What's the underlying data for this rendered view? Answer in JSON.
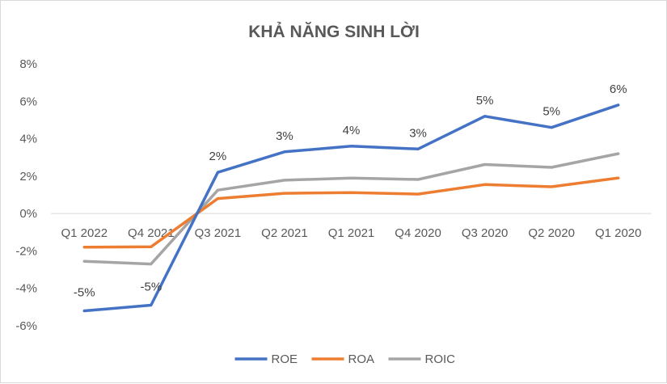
{
  "chart_data": {
    "type": "line",
    "title": "KHẢ NĂNG SINH LỜI",
    "categories": [
      "Q1 2022",
      "Q4 2021",
      "Q3 2021",
      "Q2 2021",
      "Q1 2021",
      "Q4 2020",
      "Q3 2020",
      "Q2 2020",
      "Q1 2020"
    ],
    "ylim": [
      -0.06,
      0.08
    ],
    "yticks": [
      -0.06,
      -0.04,
      -0.02,
      0,
      0.02,
      0.04,
      0.06,
      0.08
    ],
    "ytick_labels": [
      "-6%",
      "-4%",
      "-2%",
      "0%",
      "2%",
      "4%",
      "6%",
      "8%"
    ],
    "grid": false,
    "legend": "bottom",
    "series": [
      {
        "name": "ROE",
        "color": "#4472c4",
        "values": [
          -0.052,
          -0.049,
          0.022,
          0.033,
          0.036,
          0.0345,
          0.052,
          0.046,
          0.058
        ],
        "data_labels": [
          "-5%",
          "-5%",
          "2%",
          "3%",
          "4%",
          "3%",
          "5%",
          "5%",
          "6%"
        ]
      },
      {
        "name": "ROA",
        "color": "#ed7d31",
        "values": [
          -0.018,
          -0.0178,
          0.008,
          0.0108,
          0.0112,
          0.0104,
          0.0155,
          0.0143,
          0.019
        ]
      },
      {
        "name": "ROIC",
        "color": "#a5a5a5",
        "values": [
          -0.0255,
          -0.027,
          0.0125,
          0.0178,
          0.019,
          0.0182,
          0.0262,
          0.0247,
          0.032
        ]
      }
    ]
  }
}
